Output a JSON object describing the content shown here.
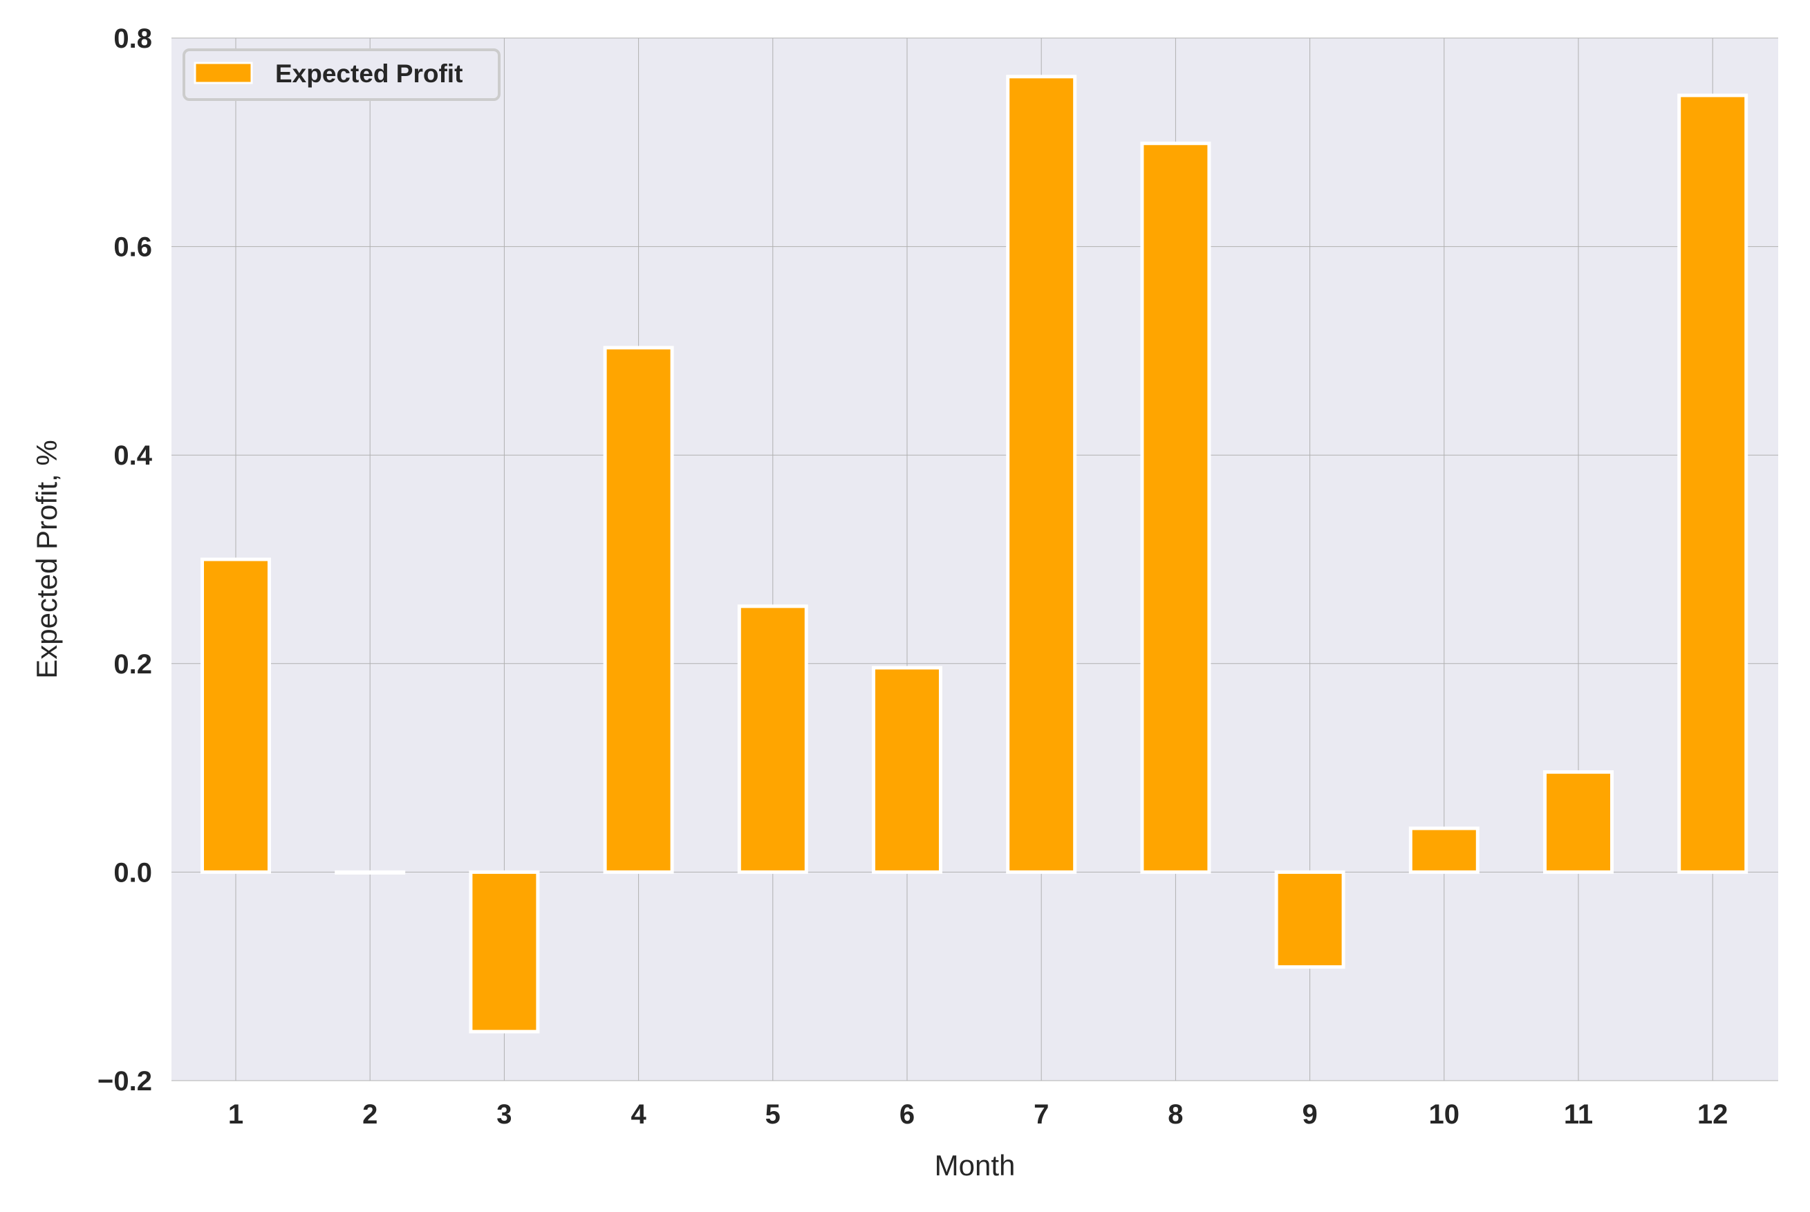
{
  "colors": {
    "plot_background": "#eaeaf2",
    "grid": "#b0b0b0",
    "bar_fill": "#ffa500",
    "bar_edge": "#ffffff",
    "text": "#262626"
  },
  "chart_data": {
    "type": "bar",
    "categories": [
      "1",
      "2",
      "3",
      "4",
      "5",
      "6",
      "7",
      "8",
      "9",
      "10",
      "11",
      "12"
    ],
    "series": [
      {
        "name": "Expected Profit",
        "values": [
          0.3,
          0.0,
          -0.153,
          0.503,
          0.255,
          0.196,
          0.763,
          0.699,
          -0.091,
          0.042,
          0.096,
          0.745
        ]
      }
    ],
    "xlabel": "Month",
    "ylabel": "Expected Profit, %",
    "ylim": [
      -0.2,
      0.8
    ],
    "yticks": [
      -0.2,
      0.0,
      0.2,
      0.4,
      0.6,
      0.8
    ],
    "ytick_labels": [
      "−0.2",
      "0.0",
      "0.2",
      "0.4",
      "0.6",
      "0.8"
    ],
    "grid": true,
    "legend_position": "top-left"
  }
}
